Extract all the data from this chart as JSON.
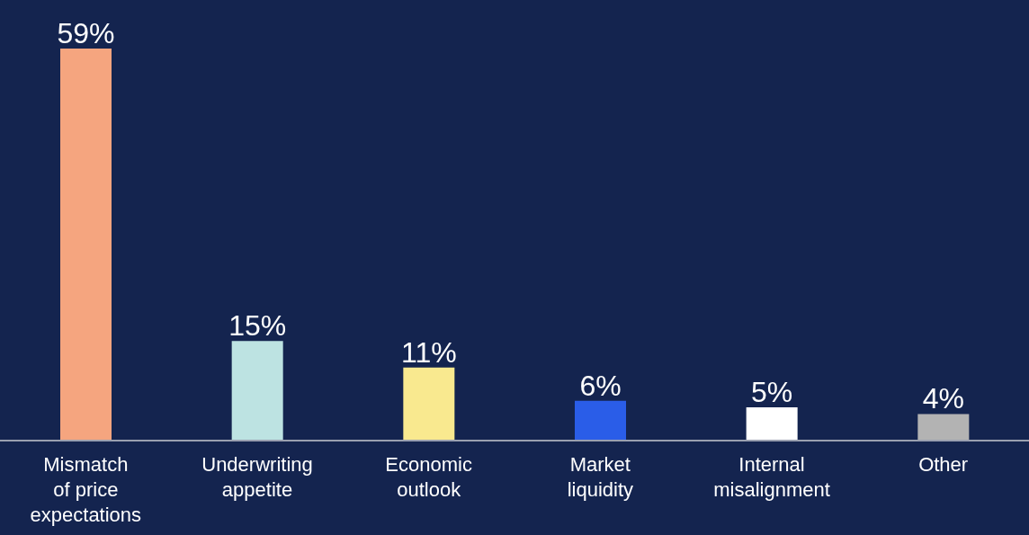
{
  "chart_data": {
    "type": "bar",
    "categories": [
      "Mismatch\nof price\nexpectations",
      "Underwriting\nappetite",
      "Economic\noutlook",
      "Market\nliquidity",
      "Internal\nmisalignment",
      "Other"
    ],
    "values": [
      59,
      15,
      11,
      6,
      5,
      4
    ],
    "colors": [
      "#f5a57f",
      "#bde3e2",
      "#f9e98f",
      "#2a5de8",
      "#ffffff",
      "#b3b3b3"
    ],
    "value_labels": [
      "59%",
      "15%",
      "11%",
      "6%",
      "5%",
      "4%"
    ]
  }
}
